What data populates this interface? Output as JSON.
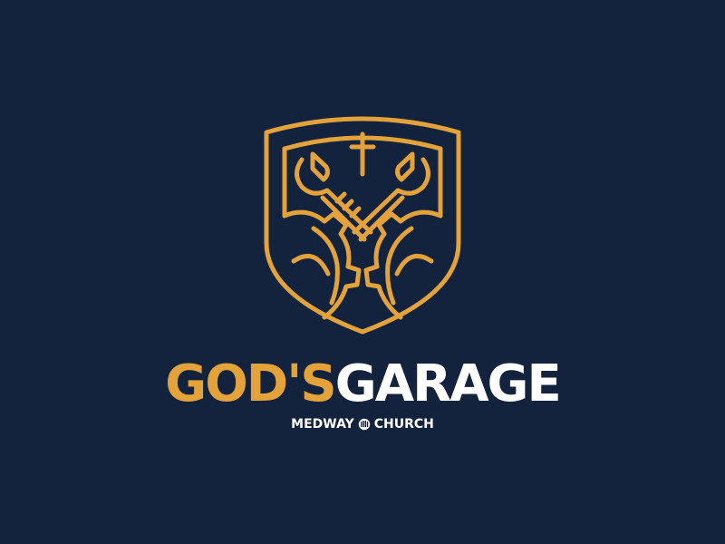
{
  "logo": {
    "title_part1": "GOD'S",
    "title_part2": "GARAGE",
    "subtitle_left": "MEDWAY",
    "subtitle_right": "CHURCH",
    "emblem_icon": "shield-wrench-cross-gear-icon",
    "subtitle_icon": "church-mark-icon"
  },
  "colors": {
    "background": "#13223d",
    "gold": "#e3a23a",
    "white": "#ffffff"
  }
}
